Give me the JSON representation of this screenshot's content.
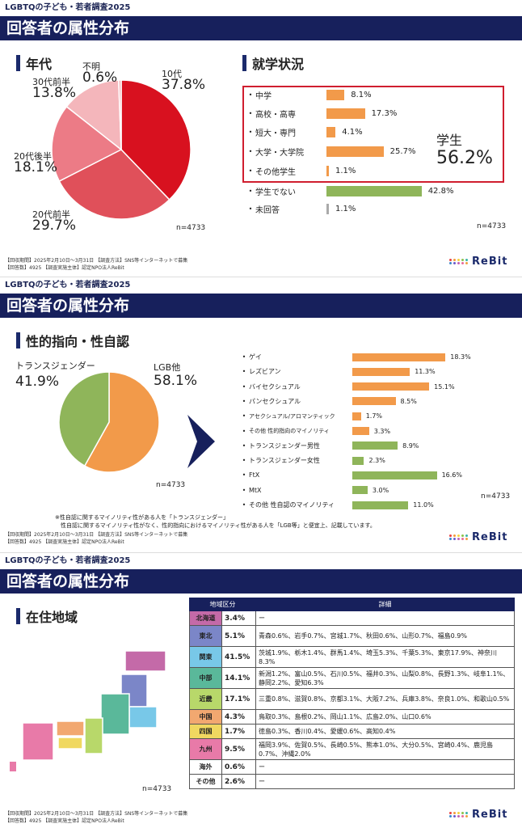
{
  "header": "LGBTQの子ども・若者調査2025",
  "banner": "回答者の属性分布",
  "footer1": "【回収期間】2025年2月10日～3月31日 【調査方法】SNS等インターネットで募集",
  "footer2": "【回答数】4925 【調査実施主体】認定NPO法人ReBit",
  "logo_word": "ReBit",
  "logo_colors": [
    "#e83e3e",
    "#f39a3a",
    "#f4d23d",
    "#8bc34a",
    "#3ab3a8",
    "#3a86c8",
    "#6a5acd",
    "#c060b0",
    "#e86a9a",
    "#f0a040"
  ],
  "section1": {
    "age_title": "年代",
    "age_n": "n=4733",
    "age_chart": {
      "type": "pie",
      "categories": [
        "10代",
        "20代前半",
        "20代後半",
        "30代前半",
        "不明"
      ],
      "values": [
        37.8,
        29.7,
        18.1,
        13.8,
        0.6
      ],
      "labels": [
        "37.8%",
        "29.7%",
        "18.1%",
        "13.8%",
        "0.6%"
      ],
      "colors": [
        "#d8111f",
        "#e0505a",
        "#ec7b86",
        "#f4b6bb",
        "#f4b6bb"
      ]
    },
    "school_title": "就学状況",
    "school_n": "n=4733",
    "student_label": "学生",
    "student_pct": "56.2%",
    "school_chart": {
      "type": "bar",
      "categories": [
        "中学",
        "高校・高専",
        "短大・専門",
        "大学・大学院",
        "その他学生",
        "学生でない",
        "未回答"
      ],
      "values": [
        8.1,
        17.3,
        4.1,
        25.7,
        1.1,
        42.8,
        1.1
      ],
      "labels": [
        "8.1%",
        "17.3%",
        "4.1%",
        "25.7%",
        "1.1%",
        "42.8%",
        "1.1%"
      ],
      "colors": [
        "#f29a4a",
        "#f29a4a",
        "#f29a4a",
        "#f29a4a",
        "#f29a4a",
        "#8fb55a",
        "#aaaaaa"
      ]
    }
  },
  "section2": {
    "title": "性的指向・性自認",
    "n": "n=4733",
    "n2": "n=4733",
    "pie_chart": {
      "type": "pie",
      "categories": [
        "LGB他",
        "トランスジェンダー"
      ],
      "values": [
        58.1,
        41.9
      ],
      "labels": [
        "58.1%",
        "41.9%"
      ],
      "colors": [
        "#f29a4a",
        "#8fb55a"
      ]
    },
    "bar_chart": {
      "type": "bar",
      "categories": [
        "ゲイ",
        "レズビアン",
        "バイセクシュアル",
        "パンセクシュアル",
        "アセクシュアル/アロマンティック",
        "その他 性的指向のマイノリティ",
        "トランスジェンダー男性",
        "トランスジェンダー女性",
        "FtX",
        "MtX",
        "その他 性自認のマイノリティ"
      ],
      "values": [
        18.3,
        11.3,
        15.1,
        8.5,
        1.7,
        3.3,
        8.9,
        2.3,
        16.6,
        3.0,
        11.0
      ],
      "labels": [
        "18.3%",
        "11.3%",
        "15.1%",
        "8.5%",
        "1.7%",
        "3.3%",
        "8.9%",
        "2.3%",
        "16.6%",
        "3.0%",
        "11.0%"
      ],
      "colors": [
        "#f29a4a",
        "#f29a4a",
        "#f29a4a",
        "#f29a4a",
        "#f29a4a",
        "#f29a4a",
        "#8fb55a",
        "#8fb55a",
        "#8fb55a",
        "#8fb55a",
        "#8fb55a"
      ]
    },
    "note1": "※性自認に関するマイノリティ性がある人を「トランスジェンダー」",
    "note2": "性自認に関するマイノリティ性がなく、性的指向におけるマイノリティ性がある人を「LGB等」と便宜上、記載しています。"
  },
  "section3": {
    "title": "在住地域",
    "n": "n=4733",
    "col_region": "地域区分",
    "col_detail": "詳細",
    "rows": [
      {
        "region": "北海道",
        "pct": "3.4%",
        "detail": "ー",
        "color": "#c46aa8"
      },
      {
        "region": "東北",
        "pct": "5.1%",
        "detail": "青森0.6%、岩手0.7%、宮城1.7%、秋田0.6%、山形0.7%、福島0.9%",
        "color": "#7b86c8"
      },
      {
        "region": "関東",
        "pct": "41.5%",
        "detail": "茨城1.9%、栃木1.4%、群馬1.4%、埼玉5.3%、千葉5.3%、東京17.9%、神奈川8.3%",
        "color": "#78c8e8"
      },
      {
        "region": "中部",
        "pct": "14.1%",
        "detail": "新潟1.2%、富山0.5%、石川0.5%、福井0.3%、山梨0.8%、長野1.3%、岐阜1.1%、静岡2.2%、愛知6.3%",
        "color": "#5ab89a"
      },
      {
        "region": "近畿",
        "pct": "17.1%",
        "detail": "三重0.8%、滋賀0.8%、京都3.1%、大阪7.2%、兵庫3.8%、奈良1.0%、和歌山0.5%",
        "color": "#b8d86a"
      },
      {
        "region": "中国",
        "pct": "4.3%",
        "detail": "鳥取0.3%、島根0.2%、岡山1.1%、広島2.0%、山口0.6%",
        "color": "#f2a870"
      },
      {
        "region": "四国",
        "pct": "1.7%",
        "detail": "徳島0.3%、香川0.4%、愛媛0.6%、高知0.4%",
        "color": "#f0d860"
      },
      {
        "region": "九州",
        "pct": "9.5%",
        "detail": "福岡3.9%、佐賀0.5%、長崎0.5%、熊本1.0%、大分0.5%、宮崎0.4%、鹿児島0.7%、沖縄2.0%",
        "color": "#e87aa8"
      },
      {
        "region": "海外",
        "pct": "0.6%",
        "detail": "ー",
        "color": "#ffffff"
      },
      {
        "region": "その他",
        "pct": "2.6%",
        "detail": "ー",
        "color": "#ffffff"
      }
    ]
  }
}
